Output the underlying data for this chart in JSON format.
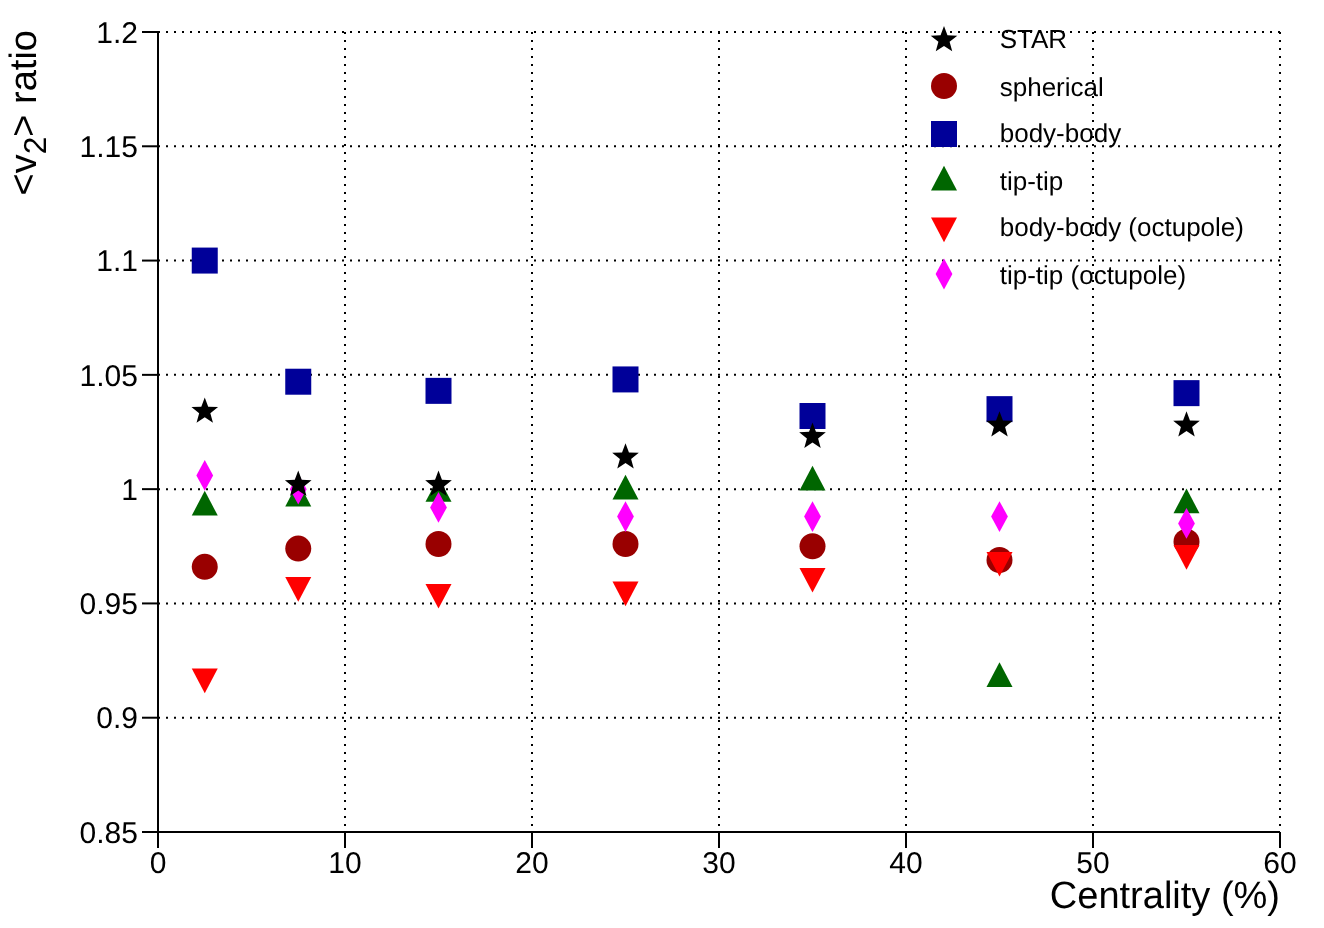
{
  "chart_data": {
    "type": "scatter",
    "xlabel": "Centrality (%)",
    "ylabel": "<v$_{2}$> ratio",
    "x": [
      2.5,
      7.5,
      15,
      25,
      35,
      45,
      55
    ],
    "series": [
      {
        "name": "STAR",
        "color": "#000000",
        "marker": "star",
        "values": [
          1.034,
          1.002,
          1.002,
          1.014,
          1.023,
          1.028,
          1.028
        ]
      },
      {
        "name": "spherical",
        "color": "#990000",
        "marker": "circle",
        "values": [
          0.966,
          0.974,
          0.976,
          0.976,
          0.975,
          0.969,
          0.977
        ]
      },
      {
        "name": "body-body",
        "color": "#000099",
        "marker": "square",
        "values": [
          1.1,
          1.047,
          1.043,
          1.048,
          1.032,
          1.035,
          1.042
        ]
      },
      {
        "name": "tip-tip",
        "color": "#006600",
        "marker": "triangle",
        "values": [
          0.993,
          0.997,
          0.999,
          1.0,
          1.004,
          0.918,
          0.994
        ]
      },
      {
        "name": "body-body (octupole)",
        "color": "#ff0000",
        "marker": "triangle-down",
        "values": [
          0.917,
          0.957,
          0.954,
          0.955,
          0.961,
          0.968,
          0.971
        ]
      },
      {
        "name": "tip-tip (octupole)",
        "color": "#ff00ff",
        "marker": "diamond",
        "values": [
          1.006,
          1.0,
          0.992,
          0.988,
          0.988,
          0.988,
          0.985
        ]
      }
    ],
    "xlim": [
      0,
      60
    ],
    "xticks": [
      0,
      10,
      20,
      30,
      40,
      50,
      60
    ],
    "ylim": [
      0.85,
      1.2
    ],
    "yticks": [
      0.85,
      0.9,
      0.95,
      1,
      1.05,
      1.1,
      1.15,
      1.2
    ],
    "grid": true,
    "legend": "top right"
  }
}
